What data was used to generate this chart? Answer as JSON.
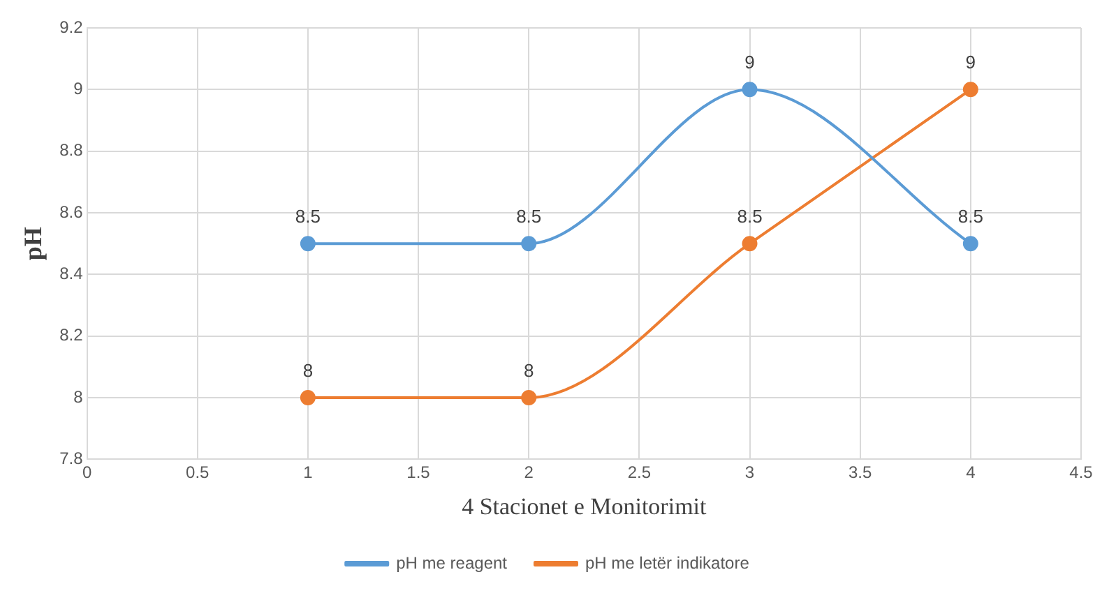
{
  "chart_data": {
    "type": "line",
    "xlabel": "4 Stacionet e Monitorimit",
    "ylabel": "pH",
    "xlim": [
      0,
      4.5
    ],
    "xticks": [
      0,
      0.5,
      1,
      1.5,
      2,
      2.5,
      3,
      3.5,
      4,
      4.5
    ],
    "ylim": [
      7.8,
      9.2
    ],
    "yticks": [
      7.8,
      8,
      8.2,
      8.4,
      8.6,
      8.8,
      9,
      9.2
    ],
    "series": [
      {
        "name": "pH me reagent",
        "color": "#5b9bd5",
        "x": [
          1,
          2,
          3,
          4
        ],
        "values": [
          8.5,
          8.5,
          9,
          8.5
        ]
      },
      {
        "name": "pH me letër indikatore",
        "color": "#ed7d31",
        "x": [
          1,
          2,
          3,
          4
        ],
        "values": [
          8,
          8,
          8.5,
          9
        ]
      }
    ],
    "grid": true,
    "legend": "bottom",
    "marker": "circle",
    "line_style": "solid",
    "data_labels": true
  }
}
